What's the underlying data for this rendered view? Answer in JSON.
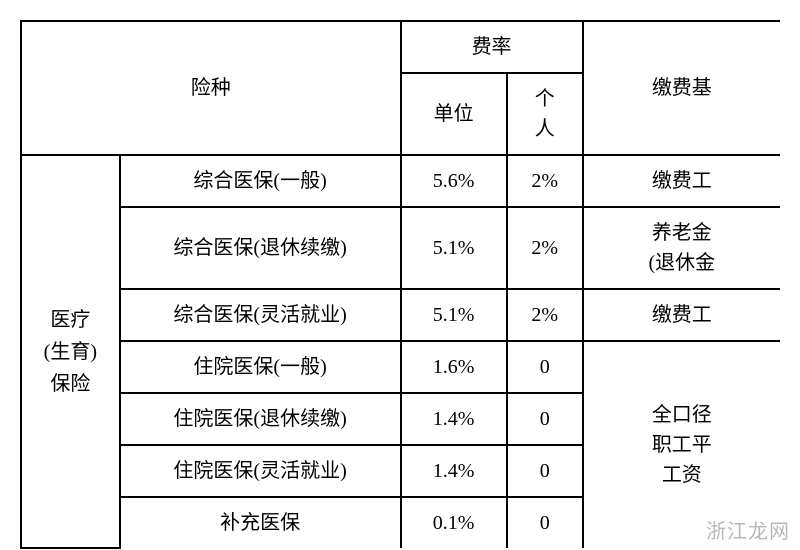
{
  "headers": {
    "insurance_type": "险种",
    "rate": "费率",
    "unit": "单位",
    "personal": "个人",
    "personal_v1": "个",
    "personal_v2": "人",
    "base": "缴费基"
  },
  "category": {
    "line1": "医疗",
    "line2": "(生育)",
    "line3": "保险"
  },
  "rows": [
    {
      "type": "综合医保(一般)",
      "unit": "5.6%",
      "personal": "2%",
      "base": "缴费工"
    },
    {
      "type": "综合医保(退休续缴)",
      "unit": "5.1%",
      "personal": "2%",
      "base_l1": "养老金",
      "base_l2": "(退休金"
    },
    {
      "type": "综合医保(灵活就业)",
      "unit": "5.1%",
      "personal": "2%",
      "base": "缴费工"
    },
    {
      "type": "住院医保(一般)",
      "unit": "1.6%",
      "personal": "0"
    },
    {
      "type": "住院医保(退休续缴)",
      "unit": "1.4%",
      "personal": "0"
    },
    {
      "type": "住院医保(灵活就业)",
      "unit": "1.4%",
      "personal": "0"
    },
    {
      "type": "补充医保",
      "unit": "0.1%",
      "personal": "0"
    }
  ],
  "merged_base": {
    "line1": "全口径",
    "line2": "职工平",
    "line3": "工资"
  },
  "watermark": "浙江龙网"
}
